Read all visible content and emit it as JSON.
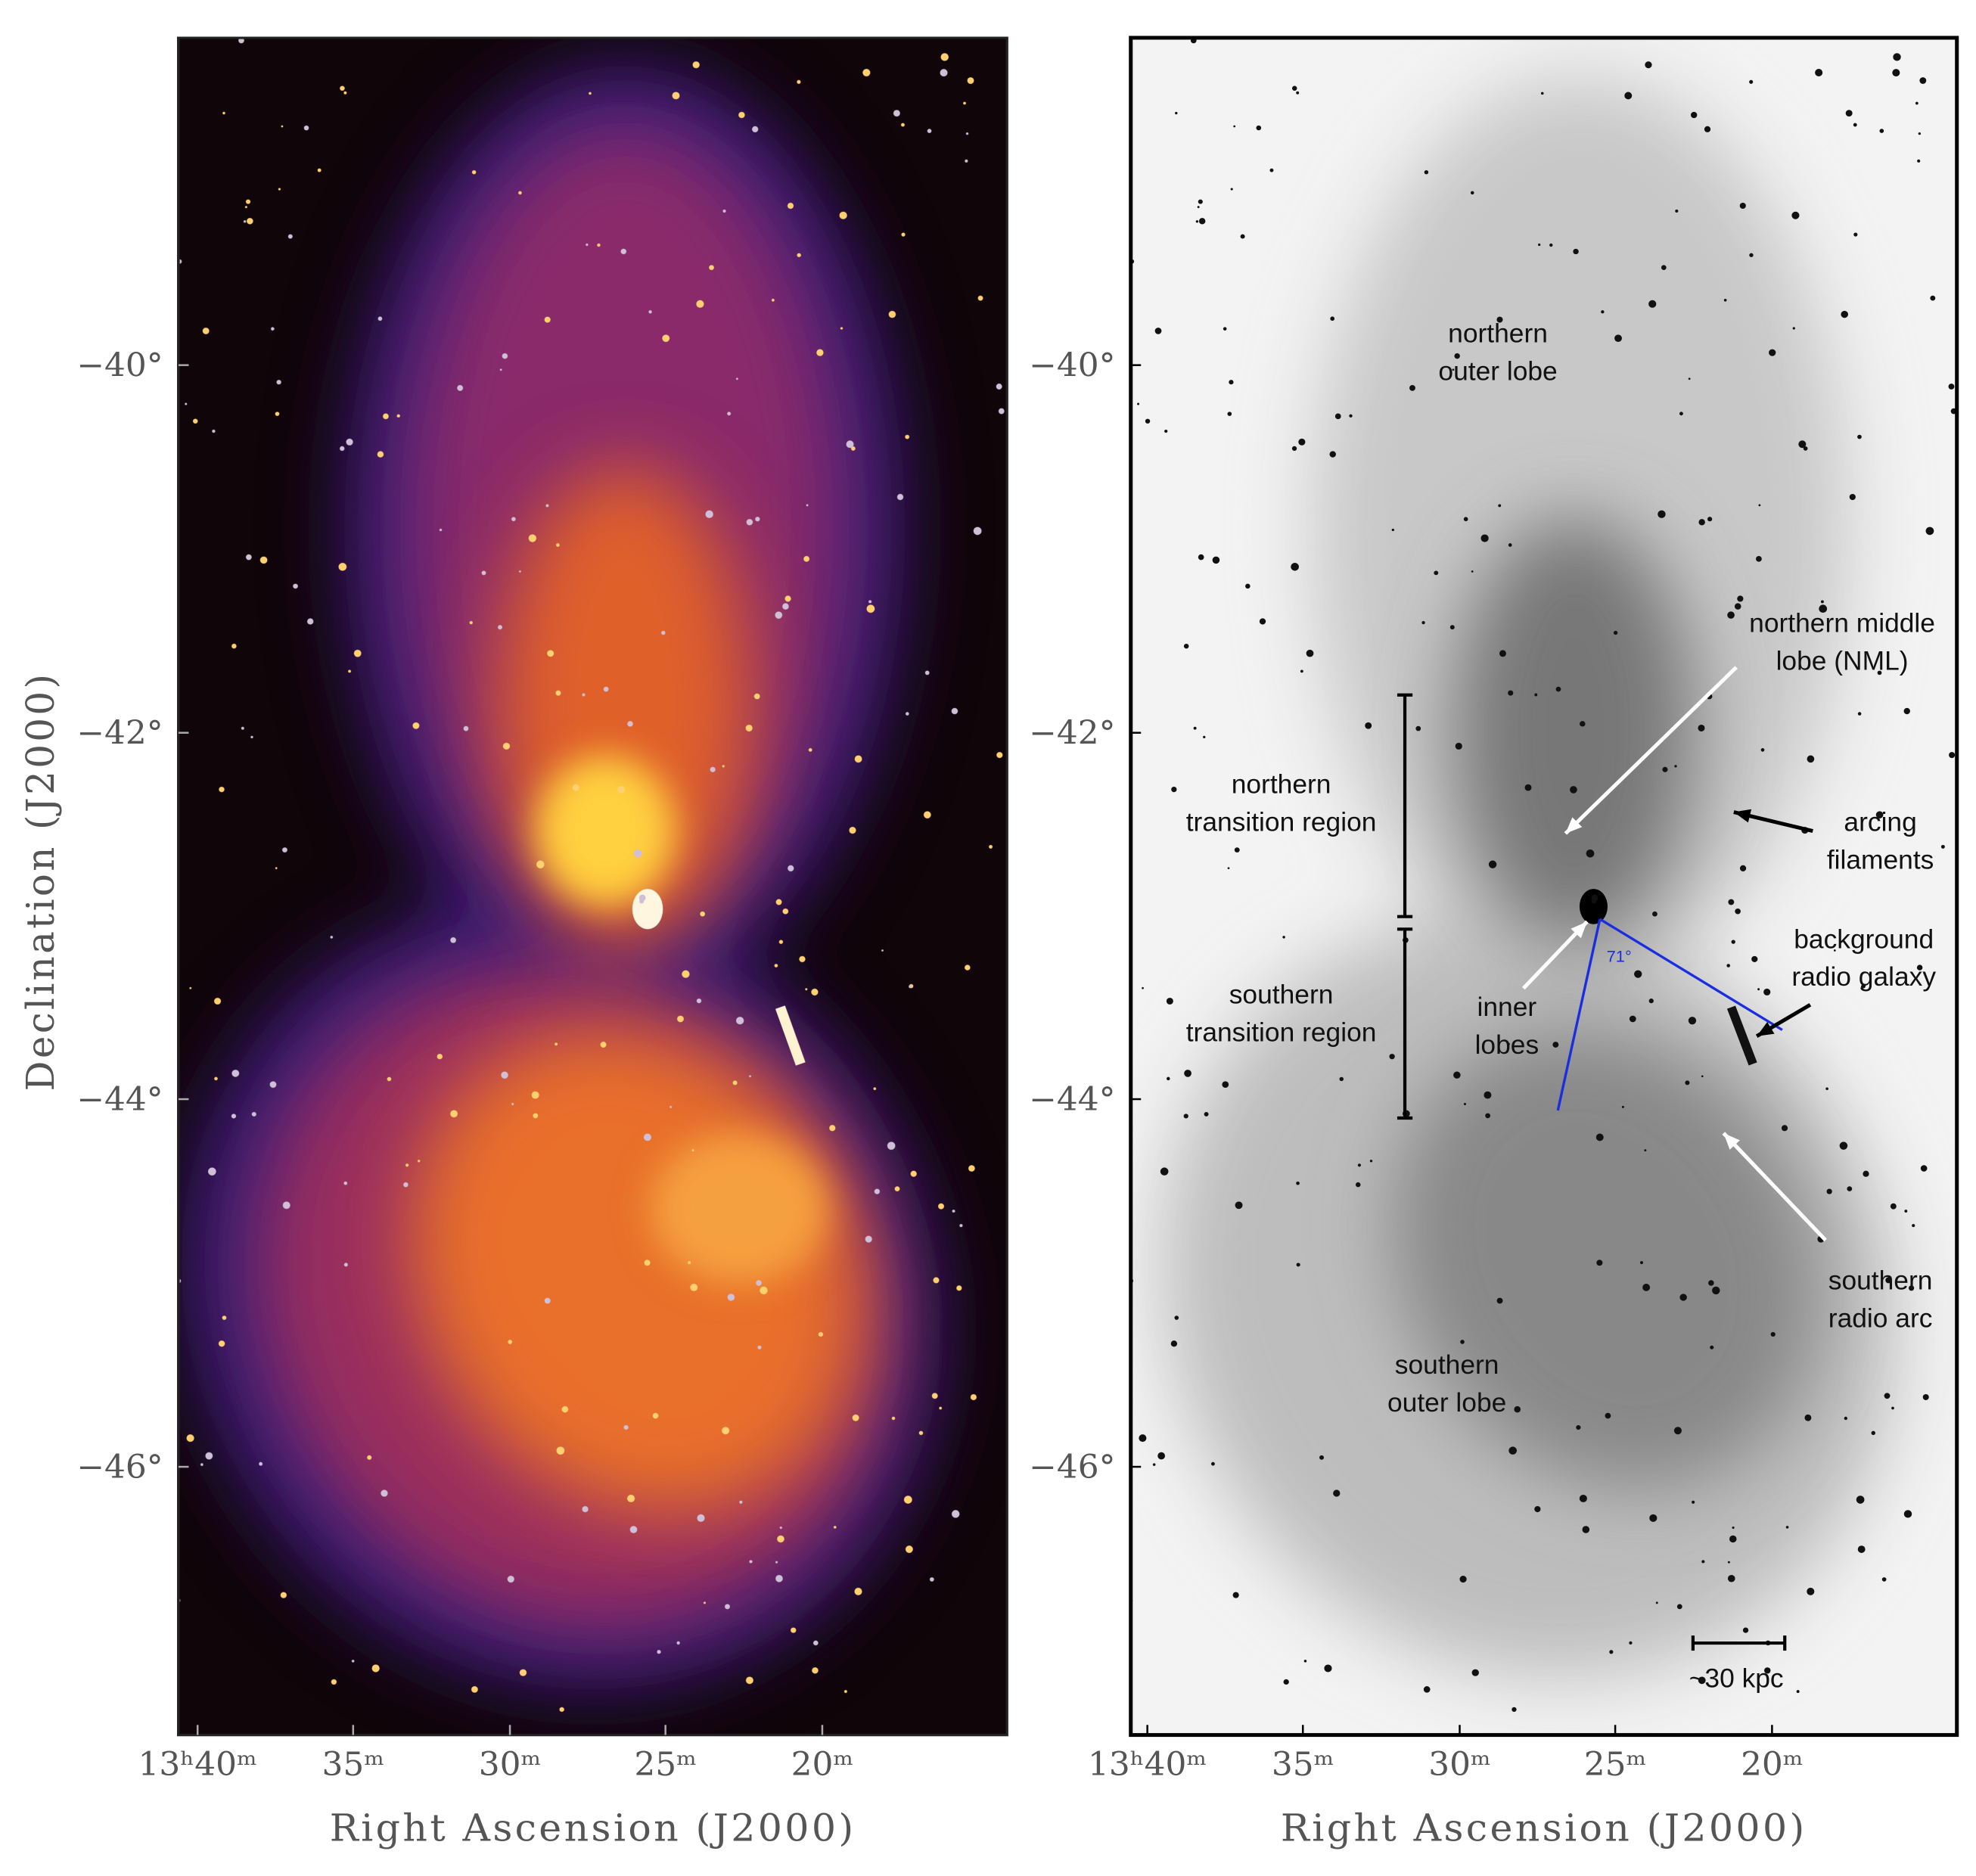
{
  "left_panel": {
    "y_axis_label": "Declination (J2000)",
    "x_axis_label": "Right Ascension (J2000)",
    "y_ticks": [
      "−40°",
      "−42°",
      "−44°",
      "−46°"
    ],
    "x_ticks": [
      "13ʰ40ᵐ",
      "35ᵐ",
      "30ᵐ",
      "25ᵐ",
      "20ᵐ"
    ]
  },
  "right_panel": {
    "x_axis_label": "Right Ascension (J2000)",
    "y_ticks": [
      "−40°",
      "−42°",
      "−44°",
      "−46°"
    ],
    "x_ticks": [
      "13ʰ40ᵐ",
      "35ᵐ",
      "30ᵐ",
      "25ᵐ",
      "20ᵐ"
    ],
    "annotations": [
      {
        "lines": [
          "northern",
          "outer lobe"
        ]
      },
      {
        "lines": [
          "northern middle",
          "lobe (NML)"
        ]
      },
      {
        "lines": [
          "northern",
          "transition region"
        ]
      },
      {
        "lines": [
          "arcing",
          "filaments"
        ]
      },
      {
        "lines": [
          "background",
          "radio galaxy"
        ]
      },
      {
        "lines": [
          "southern",
          "transition region"
        ]
      },
      {
        "lines": [
          "inner",
          "lobes"
        ]
      },
      {
        "lines": [
          "southern",
          "radio arc"
        ]
      },
      {
        "lines": [
          "southern",
          "outer lobe"
        ]
      }
    ],
    "angle_label": "71°",
    "scale_bar_label": "~30 kpc"
  }
}
